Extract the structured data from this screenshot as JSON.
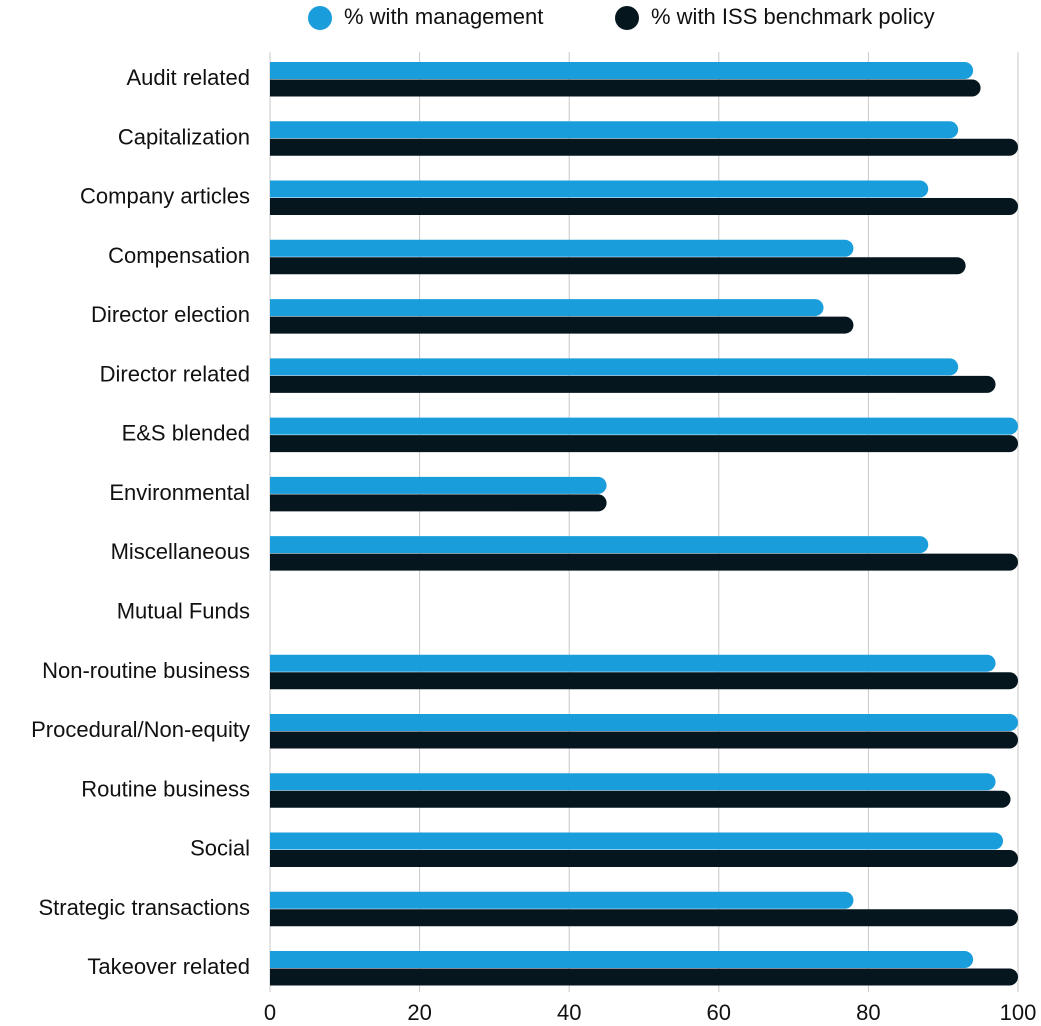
{
  "chart_data": {
    "type": "bar",
    "orientation": "horizontal",
    "categories": [
      "Audit related",
      "Capitalization",
      "Company articles",
      "Compensation",
      "Director election",
      "Director related",
      "E&S blended",
      "Environmental",
      "Miscellaneous",
      "Mutual Funds",
      "Non-routine business",
      "Procedural/Non-equity",
      "Routine business",
      "Social",
      "Strategic transactions",
      "Takeover related"
    ],
    "series": [
      {
        "name": "% with management",
        "color": "#1a9ddb",
        "values": [
          94,
          92,
          88,
          78,
          74,
          92,
          100,
          45,
          88,
          null,
          97,
          100,
          97,
          98,
          78,
          94
        ]
      },
      {
        "name": "% with ISS benchmark policy",
        "color": "#06161f",
        "values": [
          95,
          100,
          100,
          93,
          78,
          97,
          100,
          45,
          100,
          null,
          100,
          100,
          99,
          100,
          100,
          100
        ]
      }
    ],
    "xlim": [
      0,
      100
    ],
    "xticks": [
      0,
      20,
      40,
      60,
      80,
      100
    ],
    "xlabel": "",
    "ylabel": "",
    "title": "",
    "grid": "vertical",
    "legend_position": "top"
  }
}
